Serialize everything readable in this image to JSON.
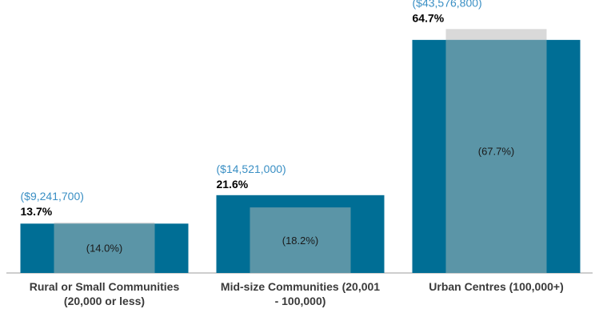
{
  "chart_data": {
    "type": "bar",
    "categories": [
      [
        "Rural or Small Communities",
        "(20,000 or less)"
      ],
      [
        "Mid-size Communities (20,001",
        "- 100,000)"
      ],
      [
        "Urban Centres (100,000+)"
      ]
    ],
    "series": [
      {
        "values": [
          13.7,
          21.6,
          64.7
        ],
        "value_labels": [
          "13.7%",
          "21.6%",
          "64.7%"
        ],
        "amount_labels": [
          "($9,241,700)",
          "($14,521,000)",
          "($43,576,800)"
        ]
      },
      {
        "values": [
          14.0,
          18.2,
          67.7
        ],
        "value_labels": [
          "(14.0%)",
          "(18.2%)",
          "(67.7%)"
        ]
      }
    ],
    "ylim": [
      0,
      70
    ],
    "grid": false,
    "legend": "none",
    "colors": {
      "outer_bar": "#006e95",
      "inner_bar": "#5b95a7",
      "inner_overflow": "#d9d9d9",
      "amount_text": "#3a8fc4",
      "axis": "#9e9e9e"
    }
  }
}
